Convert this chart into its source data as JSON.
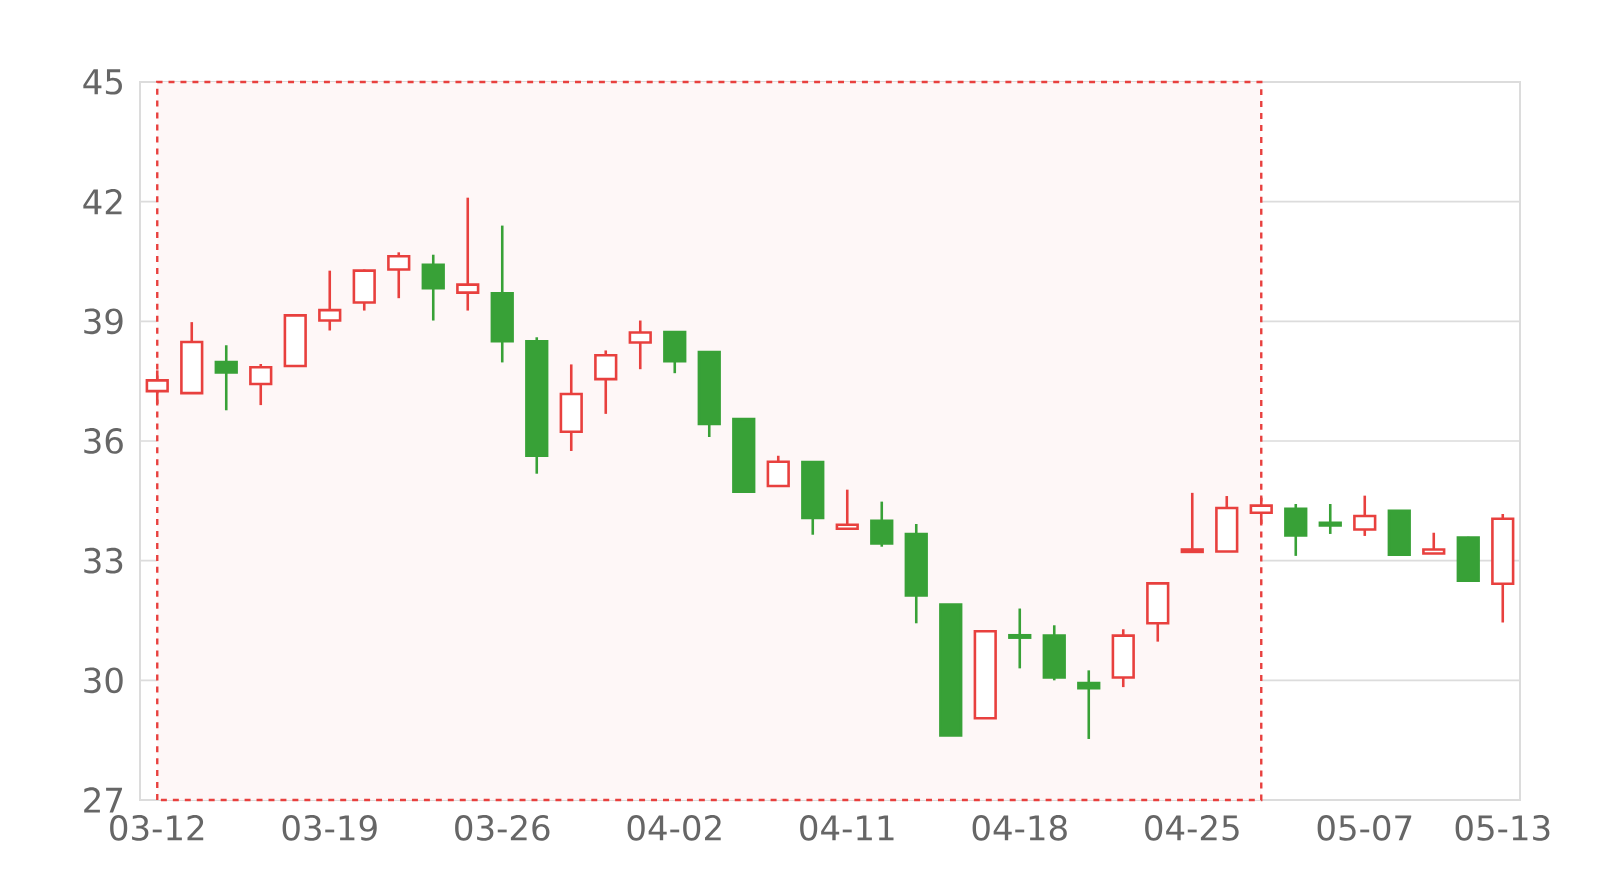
{
  "chart_data": {
    "type": "candlestick",
    "categories": [
      "03-12",
      null,
      null,
      null,
      null,
      "03-19",
      null,
      null,
      null,
      null,
      "03-26",
      null,
      null,
      null,
      null,
      "04-02",
      null,
      null,
      null,
      null,
      "04-11",
      null,
      null,
      null,
      null,
      "04-18",
      null,
      null,
      null,
      null,
      "04-25",
      null,
      null,
      null,
      null,
      "05-07",
      null,
      null,
      null,
      "05-13"
    ],
    "ohlc": [
      [
        37.25,
        37.77,
        36.93,
        37.52
      ],
      [
        37.2,
        38.98,
        37.2,
        38.48
      ],
      [
        37.98,
        38.4,
        36.77,
        37.72
      ],
      [
        37.43,
        37.93,
        36.9,
        37.85
      ],
      [
        37.88,
        39.15,
        37.88,
        39.15
      ],
      [
        39.02,
        40.27,
        38.77,
        39.28
      ],
      [
        39.47,
        40.3,
        39.27,
        40.27
      ],
      [
        40.3,
        40.73,
        39.58,
        40.63
      ],
      [
        40.42,
        40.67,
        39.02,
        39.83
      ],
      [
        39.72,
        42.1,
        39.27,
        39.92
      ],
      [
        39.7,
        41.4,
        37.97,
        38.5
      ],
      [
        38.5,
        38.6,
        35.18,
        35.63
      ],
      [
        36.23,
        37.92,
        35.75,
        37.18
      ],
      [
        37.55,
        38.27,
        36.68,
        38.15
      ],
      [
        38.47,
        39.02,
        37.8,
        38.72
      ],
      [
        38.73,
        38.73,
        37.7,
        38.0
      ],
      [
        38.23,
        38.23,
        36.1,
        36.43
      ],
      [
        36.55,
        36.55,
        34.73,
        34.73
      ],
      [
        34.87,
        35.63,
        34.87,
        35.48
      ],
      [
        35.47,
        35.47,
        33.65,
        34.07
      ],
      [
        33.8,
        34.78,
        33.8,
        33.9
      ],
      [
        34.0,
        34.48,
        33.35,
        33.43
      ],
      [
        33.67,
        33.92,
        31.43,
        32.13
      ],
      [
        31.9,
        31.9,
        28.62,
        28.62
      ],
      [
        29.05,
        31.23,
        29.05,
        31.23
      ],
      [
        31.13,
        31.8,
        30.3,
        31.07
      ],
      [
        31.12,
        31.38,
        30.0,
        30.07
      ],
      [
        29.93,
        30.25,
        28.53,
        29.8
      ],
      [
        30.07,
        31.28,
        29.83,
        31.12
      ],
      [
        31.43,
        32.43,
        30.97,
        32.43
      ],
      [
        33.22,
        34.7,
        33.22,
        33.28
      ],
      [
        33.23,
        34.62,
        33.23,
        34.32
      ],
      [
        34.2,
        34.58,
        33.92,
        34.38
      ],
      [
        34.3,
        34.42,
        33.12,
        33.63
      ],
      [
        33.95,
        34.42,
        33.67,
        33.88
      ],
      [
        33.78,
        34.63,
        33.62,
        34.12
      ],
      [
        34.25,
        34.25,
        33.15,
        33.15
      ],
      [
        33.18,
        33.7,
        33.18,
        33.28
      ],
      [
        33.58,
        33.6,
        32.5,
        32.5
      ],
      [
        32.42,
        34.17,
        31.45,
        34.05
      ]
    ],
    "colors": [
      "#e8403e",
      "#e8403e",
      "#38a137",
      "#e8403e",
      "#e8403e",
      "#e8403e",
      "#e8403e",
      "#e8403e",
      "#38a137",
      "#e8403e",
      "#38a137",
      "#38a137",
      "#e8403e",
      "#e8403e",
      "#e8403e",
      "#38a137",
      "#38a137",
      "#38a137",
      "#e8403e",
      "#38a137",
      "#e8403e",
      "#38a137",
      "#38a137",
      "#38a137",
      "#e8403e",
      "#38a137",
      "#38a137",
      "#38a137",
      "#e8403e",
      "#e8403e",
      "#e8403e",
      "#e8403e",
      "#e8403e",
      "#38a137",
      "#38a137",
      "#e8403e",
      "#38a137",
      "#e8403e",
      "#38a137",
      "#e8403e"
    ],
    "ylim": [
      27,
      45
    ],
    "yticks": [
      27,
      30,
      33,
      36,
      39,
      42,
      45
    ],
    "grid": "y"
  }
}
